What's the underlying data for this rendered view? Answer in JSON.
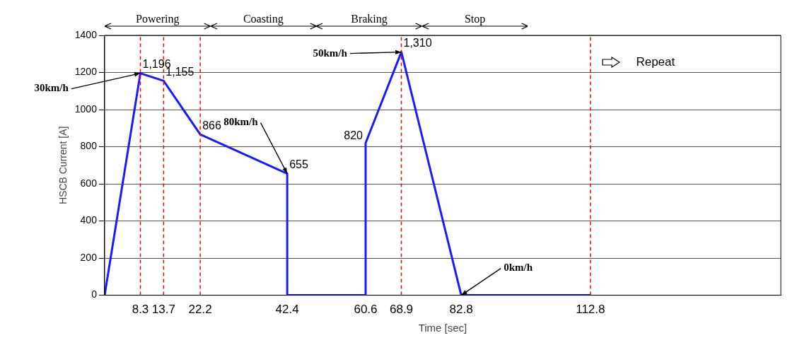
{
  "chart_data": {
    "type": "line",
    "xlabel": "Time [sec]",
    "ylabel": "HSCB Current [A]",
    "x": [
      0,
      8.3,
      13.7,
      22.2,
      42.4,
      42.4,
      60.6,
      60.6,
      68.9,
      82.8,
      112.8
    ],
    "series": [
      {
        "color": "#1a1aff",
        "values": [
          0,
          1196,
          1155,
          866,
          655,
          0,
          0,
          820,
          1310,
          0,
          0
        ],
        "value_labels": [
          null,
          "1,196",
          "1,155",
          "866",
          "655",
          null,
          null,
          "820",
          "1,310",
          null,
          null
        ]
      }
    ],
    "xlim": [
      0,
      157
    ],
    "xticks": [
      8.3,
      13.7,
      22.2,
      42.4,
      60.6,
      68.9,
      82.8,
      112.8
    ],
    "ylim": [
      0,
      1400
    ],
    "yticks": [
      0,
      200,
      400,
      600,
      800,
      1000,
      1200,
      1400
    ],
    "grid": "y",
    "legend": false,
    "marker": "none",
    "line_style": "solid",
    "ref_lines": [
      {
        "axis": "x",
        "value": 8.3,
        "color": "#ff0000",
        "line_style": "dashed"
      },
      {
        "axis": "x",
        "value": 13.7,
        "color": "#ff0000",
        "line_style": "dashed"
      },
      {
        "axis": "x",
        "value": 22.2,
        "color": "#ff0000",
        "line_style": "dashed"
      },
      {
        "axis": "x",
        "value": 68.9,
        "color": "#ff0000",
        "line_style": "dashed"
      },
      {
        "axis": "x",
        "value": 112.8,
        "color": "#ff0000",
        "line_style": "dashed"
      }
    ],
    "annotations": [
      "Powering",
      "Coasting",
      "Braking",
      "Stop",
      "Repeat",
      {
        "text": "30km/h",
        "x": 8.3,
        "y": 1196
      },
      {
        "text": "80km/h",
        "x": 42.4,
        "y": 655
      },
      {
        "text": "50km/h",
        "x": 68.9,
        "y": 1310
      },
      {
        "text": "0km/h",
        "x": 82.8,
        "y": 0
      }
    ]
  }
}
